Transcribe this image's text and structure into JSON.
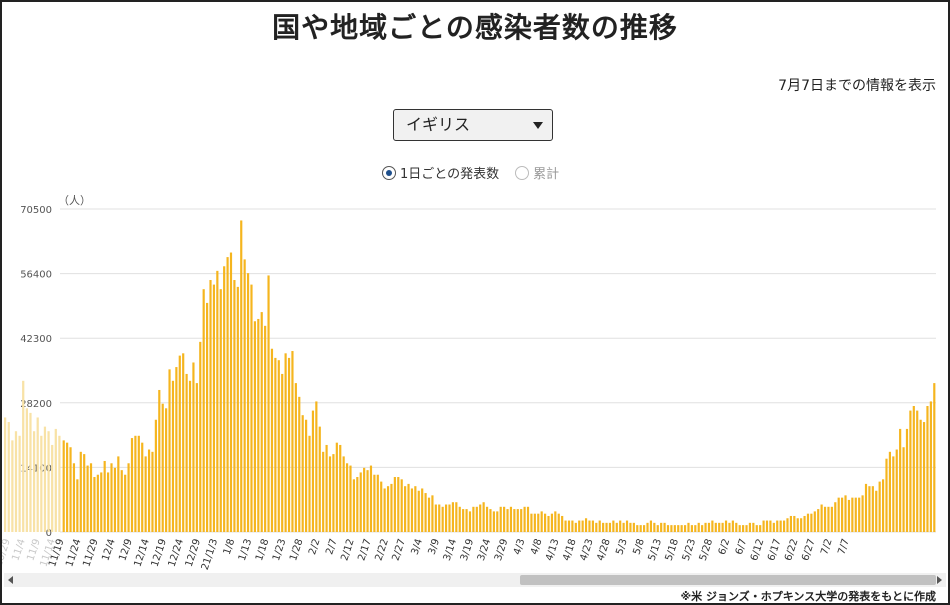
{
  "page": {
    "title": "国や地域ごとの感染者数の推移",
    "as_of": "7月7日までの情報を表示",
    "country_select": {
      "value": "イギリス"
    },
    "radio_daily": "1日ごとの発表数",
    "radio_cumulative": "累計",
    "source": "※米 ジョンズ・ホプキンス大学の発表をもとに作成",
    "colors": {
      "bar": "#f5b51e",
      "bar_faded": "#f8e2a6",
      "grid": "#e0e0e0"
    }
  },
  "chart_data": {
    "type": "bar",
    "unit_label": "（人）",
    "ylim": [
      0,
      70500
    ],
    "yticks": [
      0,
      14100,
      28200,
      42300,
      56400,
      70500
    ],
    "grid": true,
    "x_tick_labels": [
      "11/19",
      "11/24",
      "11/29",
      "12/4",
      "12/9",
      "12/14",
      "12/19",
      "12/24",
      "12/29",
      "21/1/3",
      "1/8",
      "1/13",
      "1/18",
      "1/23",
      "1/28",
      "2/2",
      "2/7",
      "2/12",
      "2/17",
      "2/22",
      "2/27",
      "3/4",
      "3/9",
      "3/14",
      "3/19",
      "3/24",
      "3/29",
      "4/3",
      "4/8",
      "4/13",
      "4/18",
      "4/23",
      "4/28",
      "5/3",
      "5/8",
      "5/13",
      "5/18",
      "5/23",
      "5/28",
      "6/2",
      "6/7",
      "6/12",
      "6/17",
      "6/22",
      "6/27",
      "7/2",
      "7/7"
    ],
    "partial_left_tick_labels": [
      "10/29",
      "11/4",
      "11/9",
      "11/14"
    ],
    "faded_values": [
      25000,
      24000,
      20000,
      22000,
      21000,
      33000,
      27000,
      26000,
      22000,
      25000,
      21000,
      23000,
      22000,
      19000,
      22500,
      21000
    ],
    "values": [
      20000,
      19500,
      18500,
      15000,
      11500,
      17500,
      17000,
      14500,
      15000,
      12000,
      12500,
      13000,
      15500,
      13000,
      15000,
      14000,
      16500,
      13500,
      12500,
      15000,
      20500,
      21000,
      21000,
      19500,
      16500,
      18000,
      17500,
      24500,
      31000,
      28000,
      27000,
      35500,
      33000,
      36000,
      38500,
      39000,
      34500,
      33000,
      37000,
      32500,
      41500,
      53000,
      50000,
      55000,
      54000,
      57000,
      53000,
      58000,
      60000,
      61000,
      55000,
      53500,
      68000,
      59500,
      56500,
      54000,
      46000,
      46500,
      48000,
      45000,
      56000,
      40000,
      38000,
      37500,
      34500,
      39000,
      38000,
      39500,
      32500,
      29500,
      25500,
      24500,
      21000,
      26500,
      28500,
      23000,
      17500,
      19000,
      16500,
      17000,
      19500,
      19000,
      16500,
      15000,
      14500,
      11500,
      12000,
      13000,
      14000,
      13500,
      14500,
      12500,
      12500,
      11000,
      9500,
      10000,
      10500,
      12000,
      12000,
      11500,
      10000,
      10500,
      9500,
      10000,
      9000,
      9500,
      8500,
      7500,
      8000,
      6000,
      6000,
      5500,
      6000,
      6000,
      6500,
      6500,
      5500,
      5000,
      5000,
      4500,
      5500,
      5500,
      6000,
      6500,
      5500,
      5000,
      4500,
      4500,
      5500,
      5500,
      5000,
      5500,
      5000,
      5000,
      5000,
      5500,
      5500,
      4000,
      4000,
      4000,
      4500,
      4000,
      3500,
      4000,
      4500,
      4000,
      3500,
      2500,
      2500,
      2500,
      2000,
      2500,
      2500,
      3000,
      2500,
      2500,
      2000,
      2500,
      2000,
      2000,
      2000,
      2500,
      2000,
      2500,
      2000,
      2500,
      2000,
      2000,
      1500,
      1500,
      1500,
      2000,
      2500,
      2000,
      1500,
      2000,
      2000,
      1500,
      1500,
      1500,
      1500,
      1500,
      1500,
      2000,
      1500,
      1500,
      2000,
      1500,
      2000,
      2000,
      2500,
      2000,
      2000,
      2000,
      2500,
      2000,
      2500,
      2000,
      1500,
      1500,
      1500,
      2000,
      2000,
      1500,
      1500,
      2500,
      2500,
      2500,
      2000,
      2500,
      2500,
      2500,
      3000,
      3500,
      3500,
      3000,
      3000,
      3500,
      4000,
      4000,
      4500,
      5000,
      6000,
      5500,
      5500,
      5500,
      6500,
      7500,
      7500,
      8000,
      7000,
      7500,
      7500,
      7500,
      8000,
      10500,
      10000,
      10000,
      9000,
      11000,
      11500,
      16000,
      17500,
      16500,
      18000,
      22500,
      18500,
      22500,
      26500,
      27500,
      26500,
      24500,
      24000,
      27500,
      28500,
      32500
    ]
  }
}
